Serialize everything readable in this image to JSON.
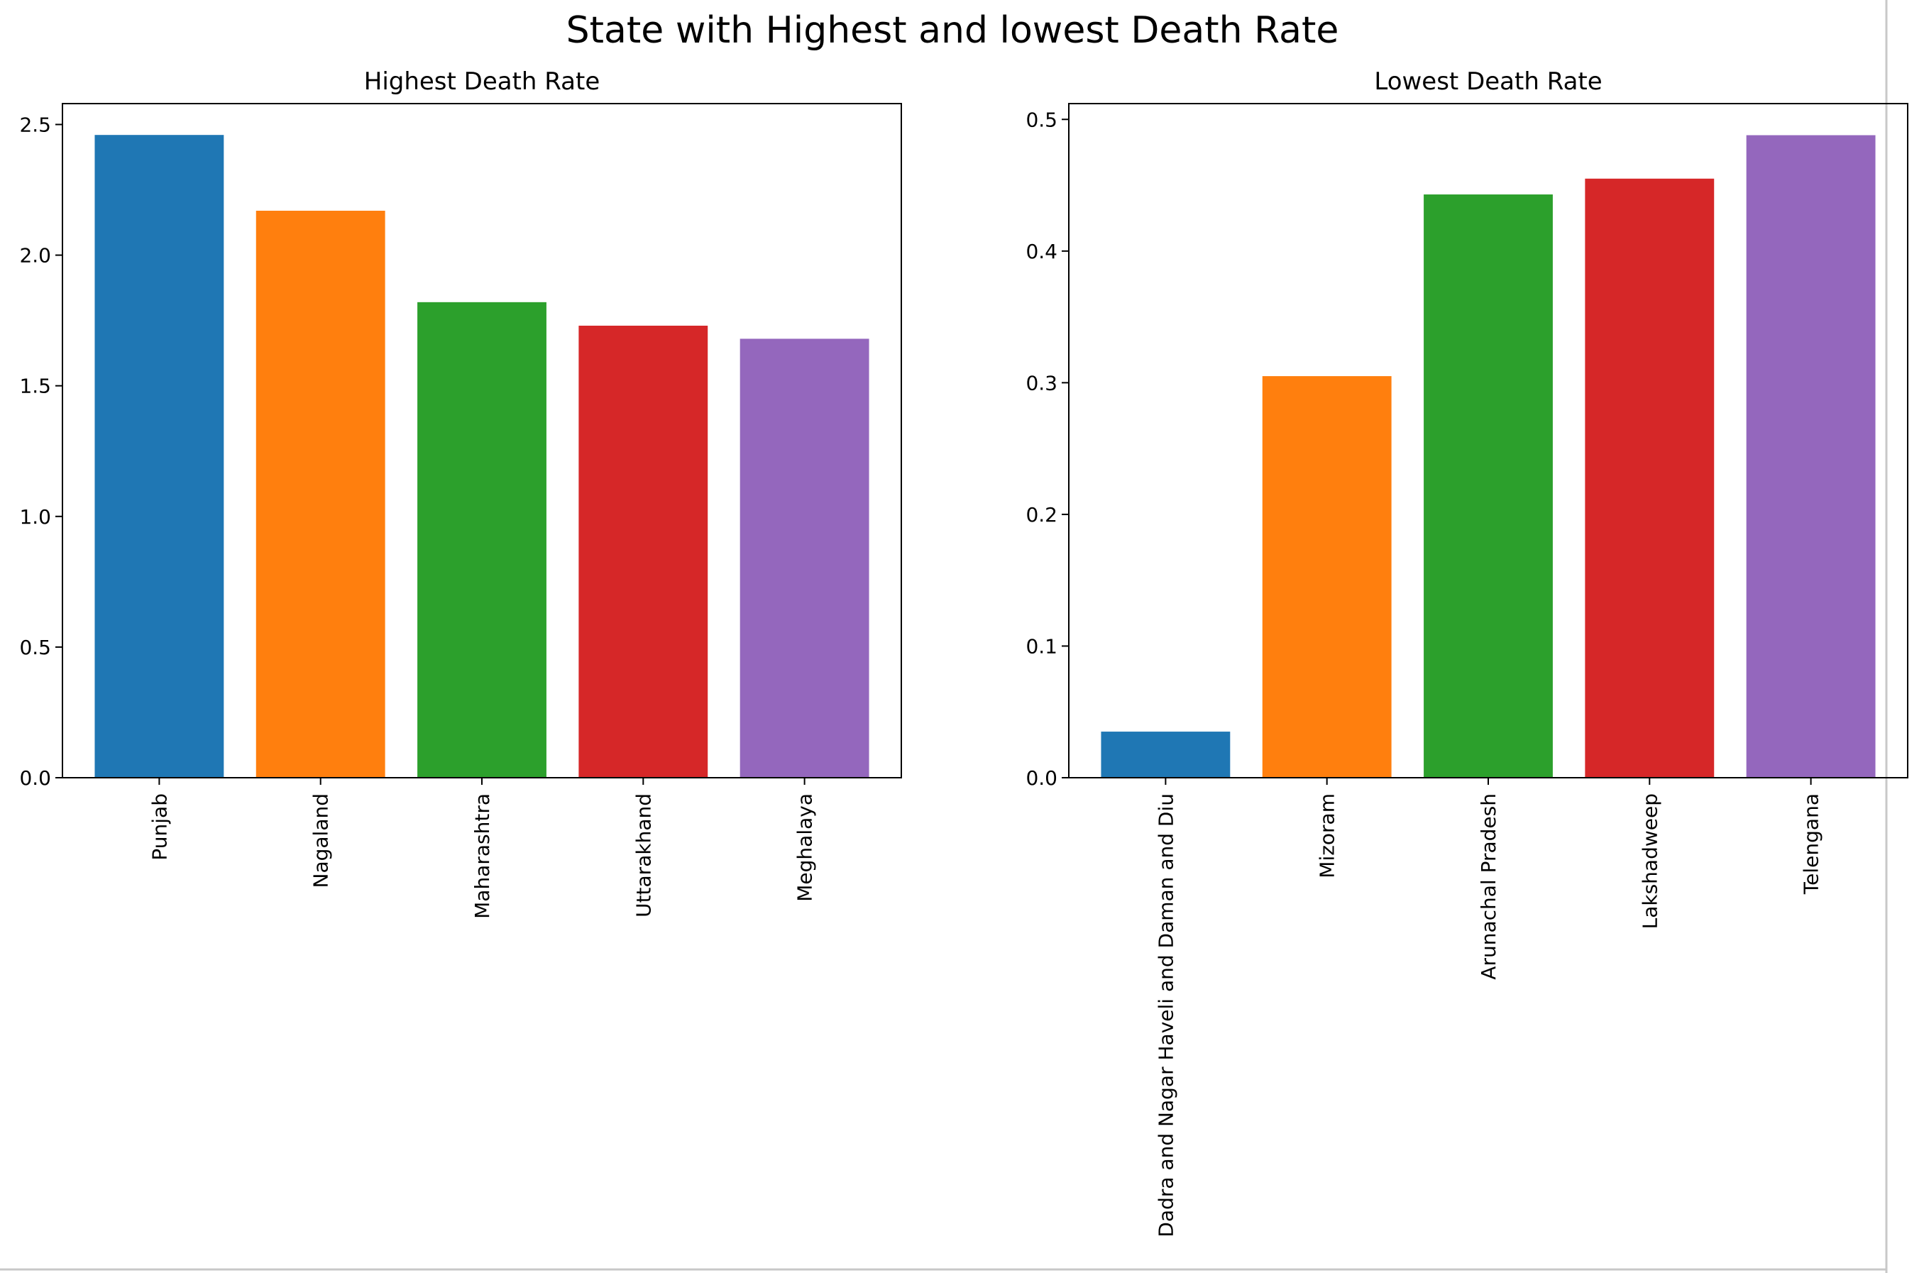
{
  "figure": {
    "title": "State with Highest and lowest Death Rate"
  },
  "chart_data": [
    {
      "type": "bar",
      "title": "Highest Death Rate",
      "xlabel": "",
      "ylabel": "",
      "categories": [
        "Punjab",
        "Nagaland",
        "Maharashtra",
        "Uttarakhand",
        "Meghalaya"
      ],
      "values": [
        2.46,
        2.17,
        1.82,
        1.73,
        1.68
      ],
      "colors": [
        "#1f77b4",
        "#ff7f0e",
        "#2ca02c",
        "#d62728",
        "#9467bd"
      ],
      "ylim": [
        0,
        2.58
      ],
      "yticks": [
        0.0,
        0.5,
        1.0,
        1.5,
        2.0,
        2.5
      ],
      "ytick_labels": [
        "0.0",
        "0.5",
        "1.0",
        "1.5",
        "2.0",
        "2.5"
      ],
      "grid": false,
      "legend": "none"
    },
    {
      "type": "bar",
      "title": "Lowest Death Rate",
      "xlabel": "",
      "ylabel": "",
      "categories": [
        "Dadra and Nagar Haveli and Daman and Diu",
        "Mizoram",
        "Arunachal Pradesh",
        "Lakshadweep",
        "Telengana"
      ],
      "values": [
        0.035,
        0.305,
        0.443,
        0.455,
        0.488
      ],
      "colors": [
        "#1f77b4",
        "#ff7f0e",
        "#2ca02c",
        "#d62728",
        "#9467bd"
      ],
      "ylim": [
        0,
        0.512
      ],
      "yticks": [
        0.0,
        0.1,
        0.2,
        0.3,
        0.4,
        0.5
      ],
      "ytick_labels": [
        "0.0",
        "0.1",
        "0.2",
        "0.3",
        "0.4",
        "0.5"
      ],
      "grid": false,
      "legend": "none"
    }
  ]
}
